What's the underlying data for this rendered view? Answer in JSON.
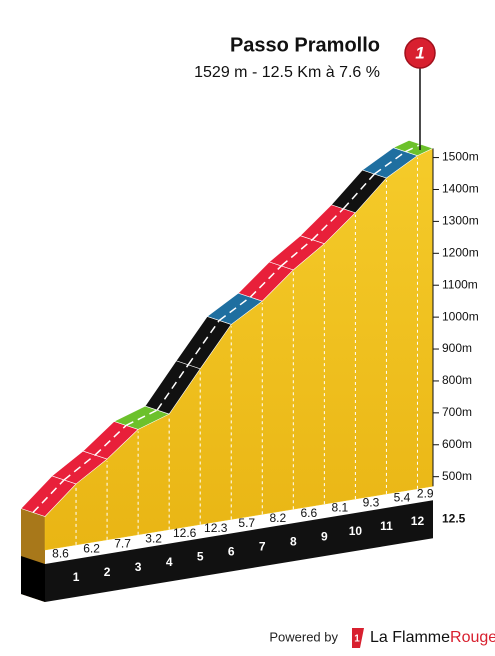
{
  "chart_data": {
    "type": "climb-profile",
    "title": "Passo Pramollo",
    "subtitle": "1529 m - 12.5 Km à 7.6 %",
    "marker": "1",
    "x": [
      0,
      1,
      2,
      3,
      4,
      5,
      6,
      7,
      8,
      9,
      10,
      11,
      12,
      12.5
    ],
    "elevations": [
      575,
      661,
      723,
      800,
      832,
      958,
      1081,
      1138,
      1220,
      1286,
      1367,
      1460,
      1514,
      1529
    ],
    "gradients": [
      8.6,
      6.2,
      7.7,
      3.2,
      12.6,
      12.3,
      5.7,
      8.2,
      6.6,
      8.1,
      9.3,
      5.4,
      2.9
    ],
    "segment_colors": [
      "#e8203a",
      "#e8203a",
      "#e8203a",
      "#6cc12b",
      "#111111",
      "#111111",
      "#1f6fa0",
      "#e8203a",
      "#e8203a",
      "#e8203a",
      "#111111",
      "#1f6fa0",
      "#6cc12b"
    ],
    "xlim": [
      0,
      12.5
    ],
    "xticks": [
      1,
      2,
      3,
      4,
      5,
      6,
      7,
      8,
      9,
      10,
      11,
      12,
      {
        "value": 12.5,
        "label": "12.5"
      }
    ],
    "ylim": [
      470,
      1530
    ],
    "yticks": [
      {
        "value": 500,
        "label": "500m"
      },
      {
        "value": 600,
        "label": "600m"
      },
      {
        "value": 700,
        "label": "700m"
      },
      {
        "value": 800,
        "label": "800m"
      },
      {
        "value": 900,
        "label": "900m"
      },
      {
        "value": 1000,
        "label": "1000m"
      },
      {
        "value": 1100,
        "label": "1100m"
      },
      {
        "value": 1200,
        "label": "1200m"
      },
      {
        "value": 1300,
        "label": "1300m"
      },
      {
        "value": 1400,
        "label": "1400m"
      },
      {
        "value": 1500,
        "label": "1500m"
      }
    ],
    "profile_color": "#f2c21a"
  },
  "footer": {
    "powered_by": "Powered by",
    "logo": "1",
    "brand_1": "La Flamme",
    "brand_2": "Rouge"
  }
}
